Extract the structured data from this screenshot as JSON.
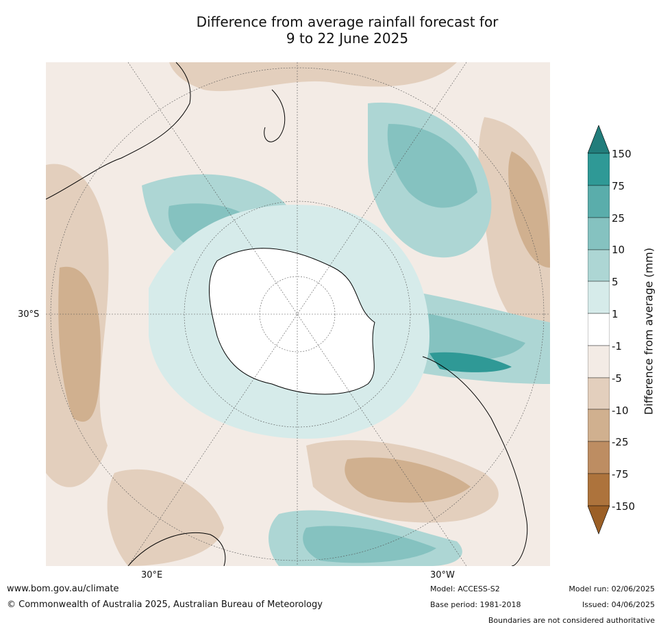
{
  "title": {
    "line1": "Difference from average rainfall forecast for",
    "line2": "9 to 22 June 2025"
  },
  "map": {
    "lon_labels": [
      "30°E",
      "30°W"
    ],
    "lat_labels": [
      "30°S"
    ],
    "projection": "south polar stereographic",
    "colors": {
      "neg_150": "#9b5f26",
      "neg_75": "#ad733c",
      "neg_25": "#bd8d62",
      "neg_10": "#d0b08f",
      "neg_5": "#e3cfbd",
      "neg_1": "#f3ebe5",
      "zero": "#ffffff",
      "pos_1": "#d6ebea",
      "pos_5": "#add6d4",
      "pos_10": "#85c2c0",
      "pos_25": "#5aadab",
      "pos_75": "#2f9996",
      "pos_150": "#227d7b"
    }
  },
  "legend": {
    "title": "Difference from average (mm)",
    "ticks": [
      "150",
      "75",
      "25",
      "10",
      "5",
      "1",
      "-1",
      "-5",
      "-10",
      "-25",
      "-75",
      "-150"
    ]
  },
  "footer": {
    "url": "www.bom.gov.au/climate",
    "copyright": "© Commonwealth of Australia 2025, Australian Bureau of Meteorology",
    "model": "Model: ACCESS-S2",
    "base_period": "Base period: 1981-2018",
    "model_run": "Model run: 02/06/2025",
    "issued": "Issued: 04/06/2025",
    "disclaimer": "Boundaries are not considered authoritative"
  }
}
